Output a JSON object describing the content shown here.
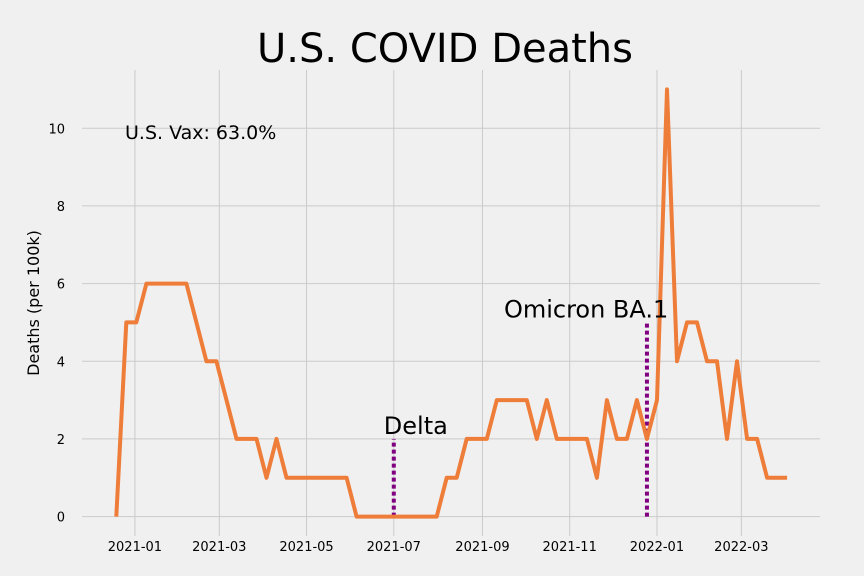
{
  "chart_data": {
    "type": "line",
    "title": "U.S. COVID Deaths",
    "xlabel": "",
    "ylabel": "Deaths (per 100k)",
    "ylim": [
      -0.5,
      11.5
    ],
    "xlim": [
      "2020-11-25",
      "2022-04-25"
    ],
    "grid": true,
    "x_ticks": [
      "2021-01-01",
      "2021-03-01",
      "2021-05-01",
      "2021-07-01",
      "2021-09-01",
      "2021-11-01",
      "2022-01-01",
      "2022-03-01"
    ],
    "x_tick_labels": [
      "2021-01",
      "2021-03",
      "2021-05",
      "2021-07",
      "2021-09",
      "2021-11",
      "2022-01",
      "2022-03"
    ],
    "y_ticks": [
      0,
      2,
      4,
      6,
      8,
      10
    ],
    "y_tick_labels": [
      "0",
      "2",
      "4",
      "6",
      "8",
      "10"
    ],
    "series": [
      {
        "color": "#ee7d3a",
        "x": [
          "2020-12-19",
          "2020-12-26",
          "2021-01-02",
          "2021-01-09",
          "2021-01-16",
          "2021-01-23",
          "2021-01-30",
          "2021-02-06",
          "2021-02-13",
          "2021-02-20",
          "2021-02-27",
          "2021-03-06",
          "2021-03-13",
          "2021-03-20",
          "2021-03-27",
          "2021-04-03",
          "2021-04-10",
          "2021-04-17",
          "2021-04-24",
          "2021-05-01",
          "2021-05-08",
          "2021-05-15",
          "2021-05-22",
          "2021-05-29",
          "2021-06-05",
          "2021-06-12",
          "2021-06-19",
          "2021-06-26",
          "2021-07-03",
          "2021-07-10",
          "2021-07-17",
          "2021-07-24",
          "2021-07-31",
          "2021-08-07",
          "2021-08-14",
          "2021-08-21",
          "2021-08-28",
          "2021-09-04",
          "2021-09-11",
          "2021-09-18",
          "2021-09-25",
          "2021-10-02",
          "2021-10-09",
          "2021-10-16",
          "2021-10-23",
          "2021-10-30",
          "2021-11-06",
          "2021-11-13",
          "2021-11-20",
          "2021-11-27",
          "2021-12-04",
          "2021-12-11",
          "2021-12-18",
          "2021-12-25",
          "2022-01-01",
          "2022-01-08",
          "2022-01-15",
          "2022-01-22",
          "2022-01-29",
          "2022-02-05",
          "2022-02-12",
          "2022-02-19",
          "2022-02-26",
          "2022-03-05",
          "2022-03-12",
          "2022-03-19",
          "2022-03-26",
          "2022-04-02"
        ],
        "values": [
          0,
          5,
          5,
          6,
          6,
          6,
          6,
          6,
          5,
          4,
          4,
          3,
          2,
          2,
          2,
          1,
          2,
          1,
          1,
          1,
          1,
          1,
          1,
          1,
          0,
          0,
          0,
          0,
          0,
          0,
          0,
          0,
          0,
          1,
          1,
          2,
          2,
          2,
          3,
          3,
          3,
          3,
          2,
          3,
          2,
          2,
          2,
          2,
          1,
          3,
          2,
          2,
          3,
          2,
          3,
          11,
          4,
          5,
          5,
          4,
          4,
          2,
          4,
          2,
          2,
          1,
          1,
          1
        ]
      }
    ],
    "annotations": [
      {
        "text": "Delta",
        "x": "2021-07-01",
        "y": 2.0,
        "line_color": "#800080"
      },
      {
        "text": "Omicron BA.1",
        "x": "2021-12-25",
        "y": 5.0,
        "line_color": "#800080"
      }
    ],
    "vax_label": "U.S. Vax: 63.0%"
  }
}
